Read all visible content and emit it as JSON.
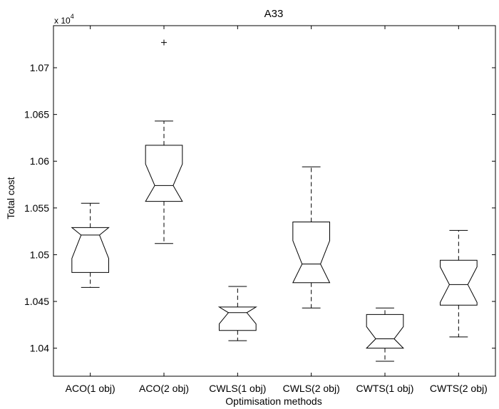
{
  "chart_data": {
    "type": "boxplot",
    "title": "A33",
    "xlabel": "Optimisation methods",
    "ylabel": "Total cost",
    "y_exponent_label": "x 10",
    "y_exponent_power": "4",
    "ylim": [
      10.37,
      10.745
    ],
    "yticks": [
      10.4,
      10.45,
      10.5,
      10.55,
      10.6,
      10.65,
      10.7
    ],
    "ytick_labels": [
      "1.04",
      "1.045",
      "1.05",
      "1.055",
      "1.06",
      "1.065",
      "1.07"
    ],
    "categories": [
      "ACO(1 obj)",
      "ACO(2 obj)",
      "CWLS(1 obj)",
      "CWLS(2 obj)",
      "CWTS(1 obj)",
      "CWTS(2 obj)"
    ],
    "boxes": [
      {
        "whisker_low": 10.465,
        "q1": 10.481,
        "median": 10.521,
        "q3": 10.529,
        "whisker_high": 10.555,
        "notch_low": 10.496,
        "notch_high": 10.546,
        "outliers": []
      },
      {
        "whisker_low": 10.512,
        "q1": 10.557,
        "median": 10.574,
        "q3": 10.617,
        "whisker_high": 10.643,
        "notch_low": 10.551,
        "notch_high": 10.597,
        "outliers": [
          10.727
        ]
      },
      {
        "whisker_low": 10.408,
        "q1": 10.419,
        "median": 10.438,
        "q3": 10.444,
        "whisker_high": 10.466,
        "notch_low": 10.426,
        "notch_high": 10.45,
        "outliers": []
      },
      {
        "whisker_low": 10.443,
        "q1": 10.47,
        "median": 10.49,
        "q3": 10.535,
        "whisker_high": 10.594,
        "notch_low": 10.465,
        "notch_high": 10.515,
        "outliers": []
      },
      {
        "whisker_low": 10.386,
        "q1": 10.4,
        "median": 10.41,
        "q3": 10.436,
        "whisker_high": 10.443,
        "notch_low": 10.397,
        "notch_high": 10.423,
        "outliers": []
      },
      {
        "whisker_low": 10.412,
        "q1": 10.446,
        "median": 10.468,
        "q3": 10.494,
        "whisker_high": 10.526,
        "notch_low": 10.449,
        "notch_high": 10.487,
        "outliers": []
      }
    ]
  }
}
